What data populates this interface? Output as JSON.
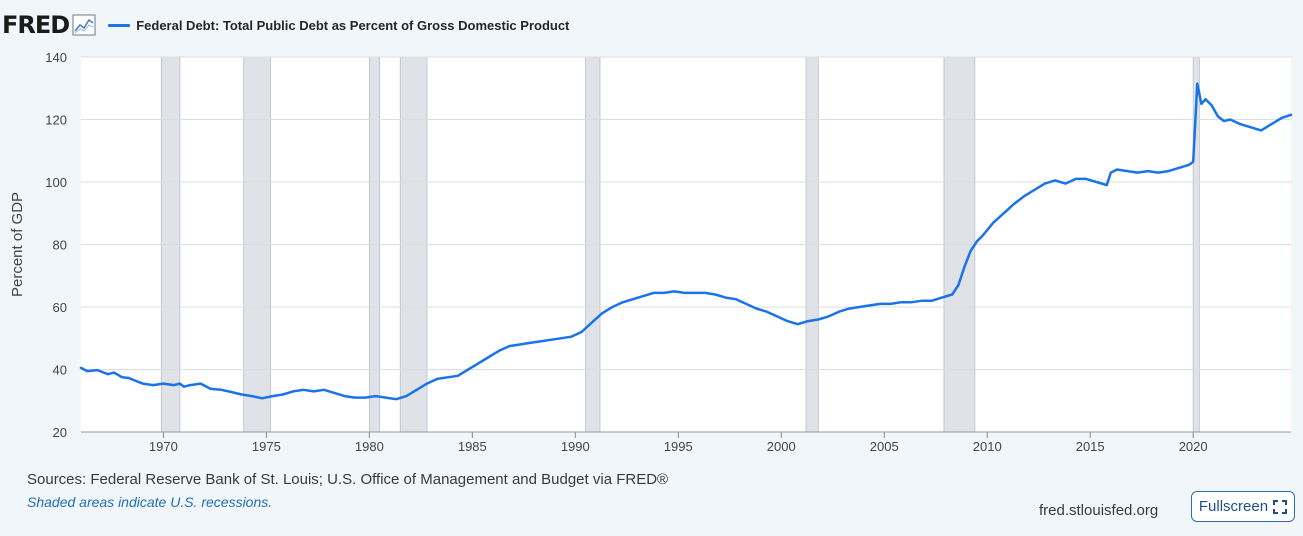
{
  "header": {
    "logo": "FRED",
    "logo_icon": "line-chart-icon",
    "series_label": "Federal Debt: Total Public Debt as Percent of Gross Domestic Product"
  },
  "footer": {
    "sources": "Sources: Federal Reserve Bank of St. Louis; U.S. Office of Management and Budget via FRED®",
    "note": "Shaded areas indicate U.S. recessions.",
    "domain": "fred.stlouisfed.org",
    "fullscreen_label": "Fullscreen",
    "fullscreen_icon": "expand-icon"
  },
  "colors": {
    "line": "#1a73e8",
    "recession": "#dfe3e8",
    "plot_background": "#ffffff",
    "page_background": "#f1f6fb",
    "grid": "#dddddd"
  },
  "chart_data": {
    "type": "line",
    "title": "",
    "xlabel": "",
    "ylabel": "Percent of GDP",
    "xlim": [
      1966.0,
      2024.75
    ],
    "ylim": [
      20,
      140
    ],
    "yticks": [
      20,
      40,
      60,
      80,
      100,
      120,
      140
    ],
    "xticks": [
      1970,
      1975,
      1980,
      1985,
      1990,
      1995,
      2000,
      2005,
      2010,
      2015,
      2020
    ],
    "grid": true,
    "legend": "top-left",
    "recessions": [
      [
        1969.9,
        1970.8
      ],
      [
        1973.9,
        1975.2
      ],
      [
        1980.0,
        1980.5
      ],
      [
        1981.5,
        1982.8
      ],
      [
        1990.5,
        1991.2
      ],
      [
        2001.2,
        2001.8
      ],
      [
        2007.9,
        2009.4
      ],
      [
        2020.0,
        2020.3
      ]
    ],
    "series": [
      {
        "name": "Federal Debt: Total Public Debt as Percent of Gross Domestic Product",
        "x": [
          1966.0,
          1966.3,
          1966.8,
          1967.3,
          1967.6,
          1968.0,
          1968.3,
          1968.6,
          1969.0,
          1969.5,
          1970.0,
          1970.5,
          1970.8,
          1971.0,
          1971.3,
          1971.8,
          1972.3,
          1972.8,
          1973.3,
          1973.8,
          1974.3,
          1974.8,
          1975.3,
          1975.8,
          1976.3,
          1976.8,
          1977.3,
          1977.8,
          1978.3,
          1978.8,
          1979.3,
          1979.8,
          1980.3,
          1980.8,
          1981.3,
          1981.8,
          1982.3,
          1982.8,
          1983.3,
          1983.8,
          1984.3,
          1984.8,
          1985.3,
          1985.8,
          1986.3,
          1986.8,
          1987.3,
          1987.8,
          1988.3,
          1988.8,
          1989.3,
          1989.8,
          1990.3,
          1990.8,
          1991.3,
          1991.8,
          1992.3,
          1992.8,
          1993.3,
          1993.8,
          1994.3,
          1994.8,
          1995.3,
          1995.8,
          1996.3,
          1996.8,
          1997.3,
          1997.8,
          1998.3,
          1998.8,
          1999.3,
          1999.8,
          2000.3,
          2000.8,
          2001.3,
          2001.8,
          2002.3,
          2002.8,
          2003.3,
          2003.8,
          2004.3,
          2004.8,
          2005.3,
          2005.8,
          2006.3,
          2006.8,
          2007.3,
          2007.8,
          2008.3,
          2008.6,
          2008.9,
          2009.2,
          2009.5,
          2009.8,
          2010.3,
          2010.8,
          2011.3,
          2011.8,
          2012.3,
          2012.8,
          2013.3,
          2013.8,
          2014.3,
          2014.8,
          2015.3,
          2015.8,
          2016.0,
          2016.3,
          2016.8,
          2017.3,
          2017.8,
          2018.3,
          2018.8,
          2019.3,
          2019.8,
          2020.0,
          2020.2,
          2020.4,
          2020.6,
          2020.9,
          2021.2,
          2021.5,
          2021.8,
          2022.3,
          2022.8,
          2023.3,
          2023.8,
          2024.3,
          2024.75
        ],
        "values": [
          40.5,
          39.5,
          39.8,
          38.5,
          39.0,
          37.5,
          37.3,
          36.5,
          35.5,
          35.0,
          35.5,
          35.0,
          35.5,
          34.5,
          35.0,
          35.5,
          33.8,
          33.5,
          32.8,
          32.0,
          31.5,
          30.8,
          31.5,
          32.0,
          33.0,
          33.5,
          33.0,
          33.5,
          32.5,
          31.5,
          31.0,
          31.0,
          31.5,
          31.0,
          30.5,
          31.5,
          33.5,
          35.5,
          37.0,
          37.5,
          38.0,
          40.0,
          42.0,
          44.0,
          46.0,
          47.5,
          48.0,
          48.5,
          49.0,
          49.5,
          50.0,
          50.5,
          52.0,
          55.0,
          58.0,
          60.0,
          61.5,
          62.5,
          63.5,
          64.5,
          64.5,
          65.0,
          64.5,
          64.5,
          64.5,
          64.0,
          63.0,
          62.5,
          61.0,
          59.5,
          58.5,
          57.0,
          55.5,
          54.5,
          55.5,
          56.0,
          57.0,
          58.5,
          59.5,
          60.0,
          60.5,
          61.0,
          61.0,
          61.5,
          61.5,
          62.0,
          62.0,
          63.0,
          64.0,
          67.0,
          73.0,
          78.0,
          81.0,
          83.0,
          87.0,
          90.0,
          93.0,
          95.5,
          97.5,
          99.5,
          100.5,
          99.5,
          101.0,
          101.0,
          100.0,
          99.0,
          103.0,
          104.0,
          103.5,
          103.0,
          103.5,
          103.0,
          103.5,
          104.5,
          105.5,
          106.5,
          131.5,
          125.0,
          126.5,
          124.5,
          121.0,
          119.5,
          120.0,
          118.5,
          117.5,
          116.5,
          118.5,
          120.5,
          121.5
        ]
      }
    ]
  }
}
